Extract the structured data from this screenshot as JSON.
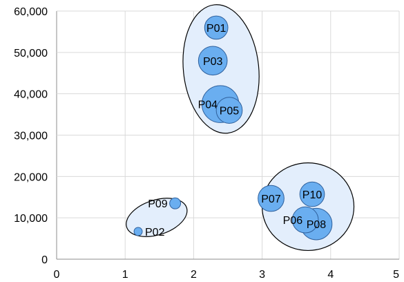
{
  "chart_data": {
    "type": "scatter",
    "title": "",
    "xlabel": "",
    "ylabel": "",
    "xlim": [
      0,
      5
    ],
    "ylim": [
      0,
      60000
    ],
    "x_ticks": [
      "0",
      "1",
      "2",
      "3",
      "4",
      "5"
    ],
    "y_ticks": [
      "0",
      "10,000",
      "20,000",
      "30,000",
      "40,000",
      "50,000",
      "60,000"
    ],
    "grid": true,
    "legend": "none",
    "colors": {
      "bubble_fill": "#6aaef0",
      "bubble_stroke": "#2e5f9b",
      "cluster_fill": "#e3eefc",
      "cluster_stroke": "#000000"
    },
    "points": [
      {
        "label": "P01",
        "x": 2.33,
        "y": 56000,
        "size": 0.17,
        "label_pos": "center"
      },
      {
        "label": "P03",
        "x": 2.28,
        "y": 48000,
        "size": 0.21,
        "label_pos": "center"
      },
      {
        "label": "P04",
        "x": 2.39,
        "y": 37500,
        "size": 0.27,
        "label_pos": "left"
      },
      {
        "label": "P05",
        "x": 2.52,
        "y": 36000,
        "size": 0.19,
        "label_pos": "center"
      },
      {
        "label": "P07",
        "x": 3.13,
        "y": 14700,
        "size": 0.19,
        "label_pos": "center"
      },
      {
        "label": "P10",
        "x": 3.73,
        "y": 15700,
        "size": 0.18,
        "label_pos": "center"
      },
      {
        "label": "P06",
        "x": 3.63,
        "y": 9500,
        "size": 0.19,
        "label_pos": "left"
      },
      {
        "label": "P08",
        "x": 3.79,
        "y": 8500,
        "size": 0.23,
        "label_pos": "center"
      },
      {
        "label": "P09",
        "x": 1.73,
        "y": 13500,
        "size": 0.08,
        "label_pos": "left"
      },
      {
        "label": "P02",
        "x": 1.19,
        "y": 6700,
        "size": 0.06,
        "label_pos": "right"
      }
    ],
    "clusters": [
      {
        "name": "cluster-top",
        "cx": 2.4,
        "cy": 46000,
        "rx": 0.55,
        "ry": 15600,
        "rot": -6
      },
      {
        "name": "cluster-right",
        "cx": 3.67,
        "cy": 12700,
        "rx": 0.67,
        "ry": 10600,
        "rot": 0
      },
      {
        "name": "cluster-left",
        "cx": 1.46,
        "cy": 10100,
        "rx": 0.46,
        "ry": 4200,
        "rot": -18
      }
    ]
  }
}
